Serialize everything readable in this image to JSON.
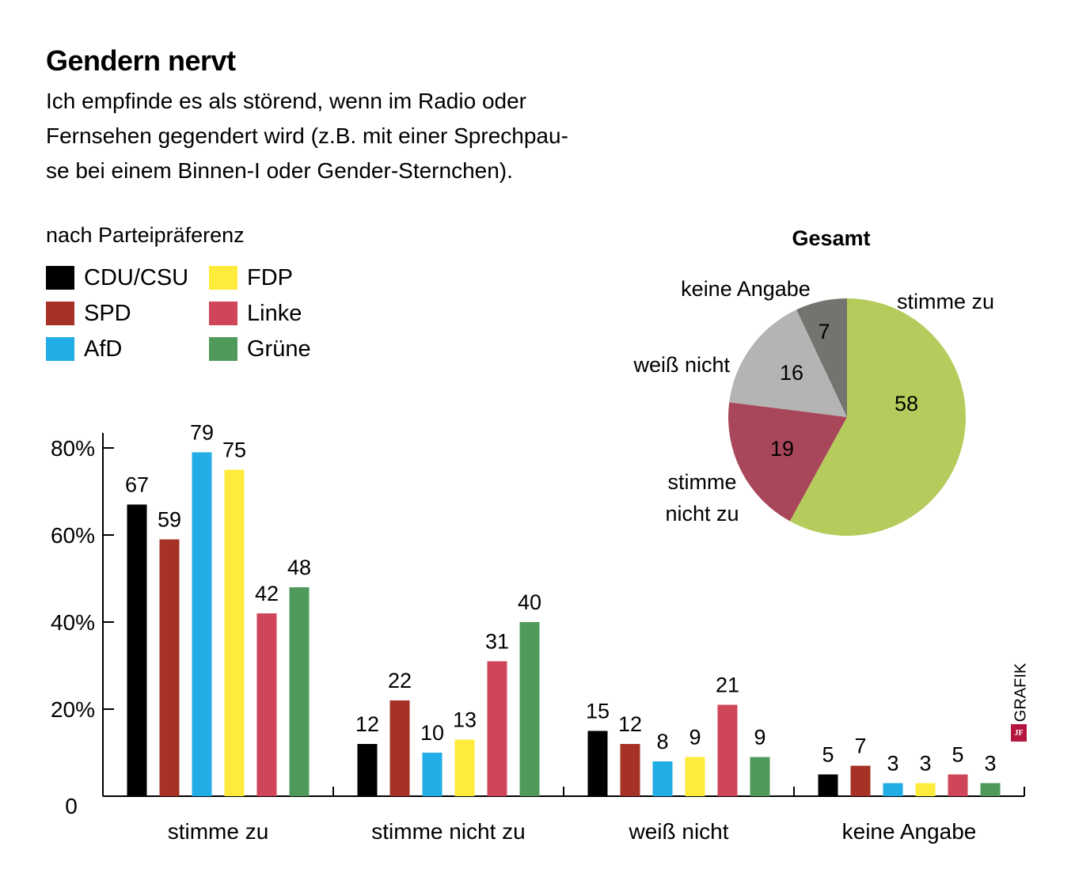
{
  "header": {
    "title": "Gendern nervt",
    "subtitle_lines": [
      "Ich empfinde es als störend, wenn im Radio oder",
      "Fernsehen gegendert wird (z.B. mit einer Sprechpau-",
      "se bei einem Binnen-I oder Gender-Sternchen)."
    ]
  },
  "legend": {
    "title": "nach Parteipräferenz",
    "items": [
      {
        "label": "CDU/CSU",
        "color": "#000000"
      },
      {
        "label": "SPD",
        "color": "#a63226"
      },
      {
        "label": "AfD",
        "color": "#22ade6"
      },
      {
        "label": "FDP",
        "color": "#ffeb3b"
      },
      {
        "label": "Linke",
        "color": "#cf4559"
      },
      {
        "label": "Grüne",
        "color": "#4f9a5a"
      }
    ]
  },
  "credit": {
    "logo_text": "JF",
    "label": "GRAFIK"
  },
  "chart_data": [
    {
      "type": "bar",
      "title": "nach Parteipräferenz",
      "xlabel": "",
      "ylabel": "",
      "ylim": [
        0,
        80
      ],
      "yticks": [
        0,
        20,
        40,
        60,
        80
      ],
      "ytick_labels": [
        "0",
        "20%",
        "40%",
        "60%",
        "80%"
      ],
      "grid": false,
      "categories": [
        "stimme zu",
        "stimme nicht zu",
        "weiß nicht",
        "keine Angabe"
      ],
      "series": [
        {
          "name": "CDU/CSU",
          "color": "#000000",
          "values": [
            67,
            12,
            15,
            5
          ]
        },
        {
          "name": "SPD",
          "color": "#a63226",
          "values": [
            59,
            22,
            12,
            7
          ]
        },
        {
          "name": "AfD",
          "color": "#22ade6",
          "values": [
            79,
            10,
            8,
            3
          ]
        },
        {
          "name": "FDP",
          "color": "#ffeb3b",
          "values": [
            75,
            13,
            9,
            3
          ]
        },
        {
          "name": "Linke",
          "color": "#cf4559",
          "values": [
            42,
            31,
            21,
            5
          ]
        },
        {
          "name": "Grüne",
          "color": "#4f9a5a",
          "values": [
            48,
            40,
            9,
            3
          ]
        }
      ],
      "legend_position": "top-left"
    },
    {
      "type": "pie",
      "title": "Gesamt",
      "slices": [
        {
          "label": "stimme zu",
          "value": 58,
          "color": "#b5cc5c"
        },
        {
          "label": "stimme nicht zu",
          "value": 19,
          "color": "#a8465a"
        },
        {
          "label": "weiß nicht",
          "value": 16,
          "color": "#b4b4b4"
        },
        {
          "label": "keine Angabe",
          "value": 7,
          "color": "#75736f"
        }
      ]
    }
  ]
}
